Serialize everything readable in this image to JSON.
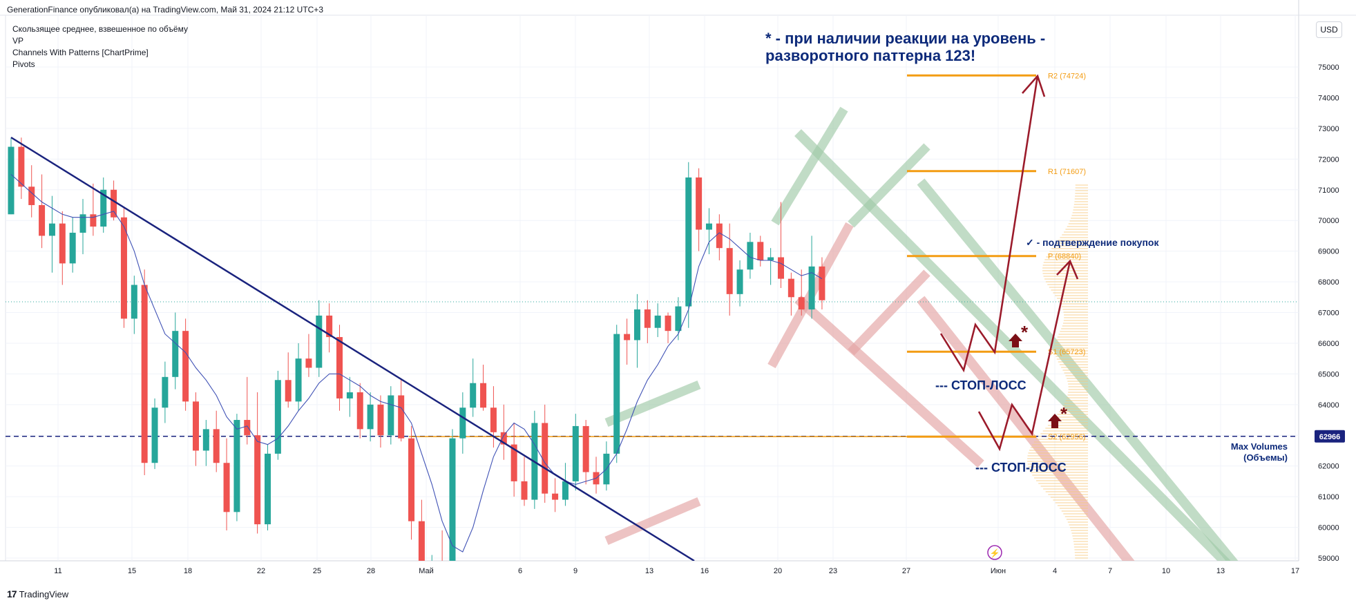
{
  "header": {
    "publish_line": "GenerationFinance опубликовал(а) на TradingView.com, Май 31, 2024 21:12 UTC+3"
  },
  "indicators": [
    "Скользящее среднее, взвешенное по объёму",
    "VP",
    "Channels With Patterns [ChartPrime]",
    "Pivots"
  ],
  "currency_button": "USD",
  "footer": {
    "logo_text": "TradingView",
    "logo_mark": "17"
  },
  "annotations": {
    "note_line1": "* - при наличии реакции на уровень -",
    "note_line2": "разворотного паттерна 123!",
    "confirm": "✓ - подтверждение покупок",
    "stop1": "--- СТОП-ЛОСС",
    "stop2": "--- СТОП-ЛОСС",
    "max_vol1": "Max Volumes",
    "max_vol2": "(Объемы)",
    "star": "*"
  },
  "colors": {
    "up": "#26a69a",
    "down": "#ef5350",
    "trendline": "#1a237e",
    "pivot": "#f39c12",
    "vwma": "#3f51b5",
    "arrows": "#9b1b2b",
    "dark_text": "#0d2a7a",
    "green_channel": "#9fc9a8",
    "red_channel": "#e3a3a3"
  },
  "chart_data": {
    "type": "candlestick",
    "ylim": [
      58900,
      75900
    ],
    "y_ticks": [
      59000,
      60000,
      61000,
      62000,
      63000,
      64000,
      65000,
      66000,
      67000,
      68000,
      69000,
      70000,
      71000,
      72000,
      73000,
      74000,
      75000
    ],
    "x_ticks": [
      "11",
      "15",
      "18",
      "22",
      "25",
      "28",
      "Май",
      "6",
      "9",
      "13",
      "16",
      "20",
      "23",
      "27",
      "Июн",
      "4",
      "7",
      "10",
      "13",
      "17"
    ],
    "price_label": "62966",
    "last_price": 67350,
    "pivots": [
      {
        "label": "R2 (74724)",
        "value": 74724
      },
      {
        "label": "R1 (71607)",
        "value": 71607
      },
      {
        "label": "P (68840)",
        "value": 68840
      },
      {
        "label": "S1 (65723)",
        "value": 65723
      },
      {
        "label": "S2 (62956)",
        "value": 62956
      }
    ],
    "candles": [
      [
        70200,
        72700,
        70200,
        72400
      ],
      [
        72400,
        72700,
        70700,
        71100
      ],
      [
        71100,
        71800,
        70100,
        70500
      ],
      [
        70500,
        71500,
        69100,
        69500
      ],
      [
        69500,
        70800,
        68300,
        69900
      ],
      [
        69900,
        70300,
        67900,
        68600
      ],
      [
        68600,
        70100,
        68300,
        69600
      ],
      [
        69600,
        70700,
        68900,
        70200
      ],
      [
        70200,
        71200,
        69500,
        69800
      ],
      [
        69800,
        71400,
        69600,
        71000
      ],
      [
        71000,
        71300,
        70000,
        70100
      ],
      [
        70100,
        70400,
        66500,
        66800
      ],
      [
        66800,
        68200,
        66300,
        67900
      ],
      [
        67900,
        68400,
        61700,
        62100
      ],
      [
        62100,
        64200,
        61900,
        63900
      ],
      [
        63900,
        65400,
        63400,
        64900
      ],
      [
        64900,
        67000,
        64500,
        66400
      ],
      [
        66400,
        66800,
        63800,
        64100
      ],
      [
        64100,
        64400,
        62000,
        62500
      ],
      [
        62500,
        63500,
        62000,
        63200
      ],
      [
        63200,
        63800,
        61800,
        62100
      ],
      [
        62100,
        62900,
        59900,
        60500
      ],
      [
        60500,
        63700,
        60200,
        63500
      ],
      [
        63500,
        64900,
        62700,
        63000
      ],
      [
        63000,
        64400,
        59800,
        60100
      ],
      [
        60100,
        62700,
        59900,
        62400
      ],
      [
        62400,
        65100,
        62200,
        64800
      ],
      [
        64800,
        65700,
        63900,
        64100
      ],
      [
        64100,
        66000,
        63800,
        65500
      ],
      [
        65500,
        66300,
        64900,
        65200
      ],
      [
        65200,
        67400,
        64900,
        66900
      ],
      [
        66900,
        67300,
        65700,
        66200
      ],
      [
        66200,
        66600,
        63800,
        64200
      ],
      [
        64200,
        64900,
        63600,
        64400
      ],
      [
        64400,
        64700,
        62900,
        63200
      ],
      [
        63200,
        64400,
        62800,
        64000
      ],
      [
        64000,
        64300,
        62600,
        63000
      ],
      [
        63000,
        64600,
        62700,
        64300
      ],
      [
        64300,
        64800,
        62800,
        62900
      ],
      [
        62900,
        63300,
        59600,
        60200
      ],
      [
        60200,
        60900,
        56600,
        57200
      ],
      [
        57200,
        59100,
        56800,
        58800
      ],
      [
        58800,
        59900,
        56900,
        58400
      ],
      [
        58400,
        63200,
        58000,
        62900
      ],
      [
        62900,
        64400,
        62400,
        63900
      ],
      [
        63900,
        65500,
        63600,
        64700
      ],
      [
        64700,
        65300,
        63800,
        63900
      ],
      [
        63900,
        64600,
        62600,
        63100
      ],
      [
        63100,
        64000,
        62200,
        62700
      ],
      [
        62700,
        63400,
        61000,
        61500
      ],
      [
        61500,
        62300,
        60700,
        60900
      ],
      [
        60900,
        63800,
        60600,
        63400
      ],
      [
        63400,
        64000,
        60800,
        61100
      ],
      [
        61100,
        61600,
        60500,
        60900
      ],
      [
        60900,
        62100,
        60700,
        61500
      ],
      [
        61500,
        63700,
        61200,
        63300
      ],
      [
        63300,
        63500,
        61400,
        61800
      ],
      [
        61800,
        62300,
        61100,
        61400
      ],
      [
        61400,
        62800,
        61200,
        62400
      ],
      [
        62400,
        66600,
        62100,
        66300
      ],
      [
        66300,
        66800,
        65300,
        66100
      ],
      [
        66100,
        67600,
        65200,
        67100
      ],
      [
        67100,
        67400,
        66000,
        66500
      ],
      [
        66500,
        67300,
        66200,
        66900
      ],
      [
        66900,
        67000,
        66000,
        66400
      ],
      [
        66400,
        67500,
        66100,
        67200
      ],
      [
        67200,
        71900,
        66500,
        71400
      ],
      [
        71400,
        71700,
        69000,
        69700
      ],
      [
        69700,
        70400,
        68900,
        69900
      ],
      [
        69900,
        70200,
        68700,
        69100
      ],
      [
        69100,
        69900,
        66900,
        67600
      ],
      [
        67600,
        68700,
        67200,
        68400
      ],
      [
        68400,
        69600,
        68100,
        69300
      ],
      [
        69300,
        69500,
        68500,
        68700
      ],
      [
        68700,
        69100,
        67900,
        68800
      ],
      [
        68800,
        70600,
        67800,
        68100
      ],
      [
        68100,
        68300,
        66900,
        67500
      ],
      [
        67500,
        68400,
        66900,
        67100
      ],
      [
        67100,
        69500,
        66800,
        68500
      ],
      [
        68500,
        68800,
        67100,
        67400
      ]
    ],
    "vwma": [
      71500,
      71200,
      70900,
      70600,
      70400,
      70200,
      70100,
      70100,
      70100,
      70200,
      70300,
      69800,
      69000,
      67900,
      67100,
      66300,
      66000,
      65700,
      65200,
      64800,
      64300,
      63600,
      63200,
      63300,
      62800,
      62700,
      62900,
      63300,
      63800,
      64200,
      64700,
      65000,
      65000,
      64800,
      64600,
      64300,
      64100,
      64000,
      63900,
      63400,
      62400,
      61400,
      60200,
      59400,
      59200,
      60000,
      61200,
      62300,
      63000,
      63400,
      63200,
      62700,
      62100,
      61700,
      61500,
      61400,
      61500,
      61600,
      61900,
      62400,
      63200,
      64100,
      64800,
      65300,
      65900,
      66300,
      67100,
      68500,
      69300,
      69600,
      69400,
      69100,
      68800,
      68700,
      68700,
      68600,
      68400,
      68200,
      68300,
      68100
    ]
  }
}
